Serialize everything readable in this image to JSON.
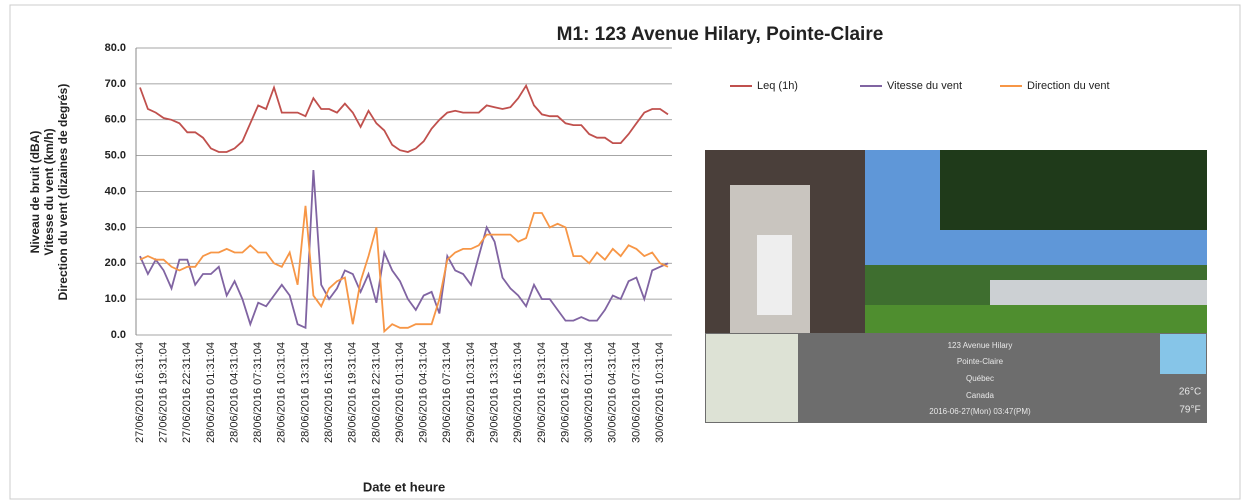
{
  "chart_data": {
    "type": "line",
    "title": "M1: 123 Avenue Hilary, Pointe-Claire",
    "x_label": "Date et heure",
    "y_label": [
      "Niveau de bruit (dBA)",
      "Vitesse du vent (km/h)",
      "Direction du vent (dizaines de degrés)"
    ],
    "categories": [
      "27/06/2016 16:31:04",
      null,
      null,
      "27/06/2016 19:31:04",
      null,
      null,
      "27/06/2016 22:31:04",
      null,
      null,
      "28/06/2016 01:31:04",
      null,
      null,
      "28/06/2016 04:31:04",
      null,
      null,
      "28/06/2016 07:31:04",
      null,
      null,
      "28/06/2016 10:31:04",
      null,
      null,
      "28/06/2016 13:31:04",
      null,
      null,
      "28/06/2016 16:31:04",
      null,
      null,
      "28/06/2016 19:31:04",
      null,
      null,
      "28/06/2016 22:31:04",
      null,
      null,
      "29/06/2016 01:31:04",
      null,
      null,
      "29/06/2016 04:31:04",
      null,
      null,
      "29/06/2016 07:31:04",
      null,
      null,
      "29/06/2016 10:31:04",
      null,
      null,
      "29/06/2016 13:31:04",
      null,
      null,
      "29/06/2016 16:31:04",
      null,
      null,
      "29/06/2016 19:31:04",
      null,
      null,
      "29/06/2016 22:31:04",
      null,
      null,
      "30/06/2016 01:31:04",
      null,
      null,
      "30/06/2016 04:31:04",
      null,
      null,
      "30/06/2016 07:31:04",
      null,
      null,
      "30/06/2016 10:31:04",
      null
    ],
    "series": [
      {
        "name": "Leq (1h)",
        "color": "#c0504d",
        "values": [
          69,
          63,
          62,
          60.5,
          60,
          59,
          56.5,
          56.5,
          55,
          52,
          51,
          51,
          52,
          54,
          59,
          64,
          63,
          69,
          62,
          62,
          62,
          61,
          66,
          63,
          63,
          62,
          64.5,
          62,
          58,
          62.5,
          59,
          57,
          53,
          51.5,
          51,
          52,
          54,
          57.5,
          60,
          62,
          62.5,
          62,
          62,
          62,
          64,
          63.5,
          63,
          63.5,
          66,
          69.5,
          64,
          61.5,
          61,
          61,
          59,
          58.5,
          58.5,
          56,
          55,
          55,
          53.5,
          53.5,
          56,
          59,
          62,
          63,
          63,
          61.5
        ]
      },
      {
        "name": "Vitesse du vent",
        "color": "#8064a2",
        "values": [
          22,
          17,
          21,
          18,
          13,
          21,
          21,
          14,
          17,
          17,
          19,
          11,
          15,
          10,
          3,
          9,
          8,
          11,
          14,
          11,
          3,
          2,
          46,
          14,
          10,
          13,
          18,
          17,
          12,
          17,
          9,
          23,
          18,
          15,
          10,
          7,
          11,
          12,
          6,
          22,
          18,
          17,
          14,
          22,
          30,
          26,
          16,
          13,
          11,
          8,
          14,
          10,
          10,
          7,
          4,
          4,
          5,
          4,
          4,
          7,
          11,
          10,
          15,
          16,
          10,
          18,
          19,
          20
        ]
      },
      {
        "name": "Direction du vent",
        "color": "#f79646",
        "values": [
          21,
          22,
          21,
          21,
          19,
          18,
          19,
          19,
          22,
          23,
          23,
          24,
          23,
          23,
          25,
          23,
          23,
          20,
          19,
          23,
          14,
          36,
          11,
          8,
          13,
          15,
          16,
          3,
          15,
          22,
          30,
          1,
          3,
          2,
          2,
          3,
          3,
          3,
          10,
          21,
          23,
          24,
          24,
          25,
          28,
          28,
          28,
          28,
          26,
          27,
          34,
          34,
          30,
          31,
          30,
          22,
          22,
          20,
          23,
          21,
          24,
          22,
          25,
          24,
          22,
          23,
          20,
          19
        ]
      }
    ],
    "ylim": [
      0,
      80
    ],
    "yticks": [
      {
        "value": 0,
        "label": "0.0"
      },
      {
        "value": 10,
        "label": "10.0"
      },
      {
        "value": 20,
        "label": "20.0"
      },
      {
        "value": 30,
        "label": "30.0"
      },
      {
        "value": 40,
        "label": "40.0"
      },
      {
        "value": 50,
        "label": "50.0"
      },
      {
        "value": 60,
        "label": "60.0"
      },
      {
        "value": 70,
        "label": "70.0"
      },
      {
        "value": 80,
        "label": "80.0"
      }
    ],
    "grid": true,
    "legend": "top-right"
  },
  "photo_caption": {
    "address": [
      "123 Avenue Hilary",
      "Pointe-Claire",
      "Québec",
      "Canada"
    ],
    "timestamp": "2016-06-27(Mon)  03:47(PM)",
    "temperature": [
      "26°C",
      "79°F"
    ]
  }
}
